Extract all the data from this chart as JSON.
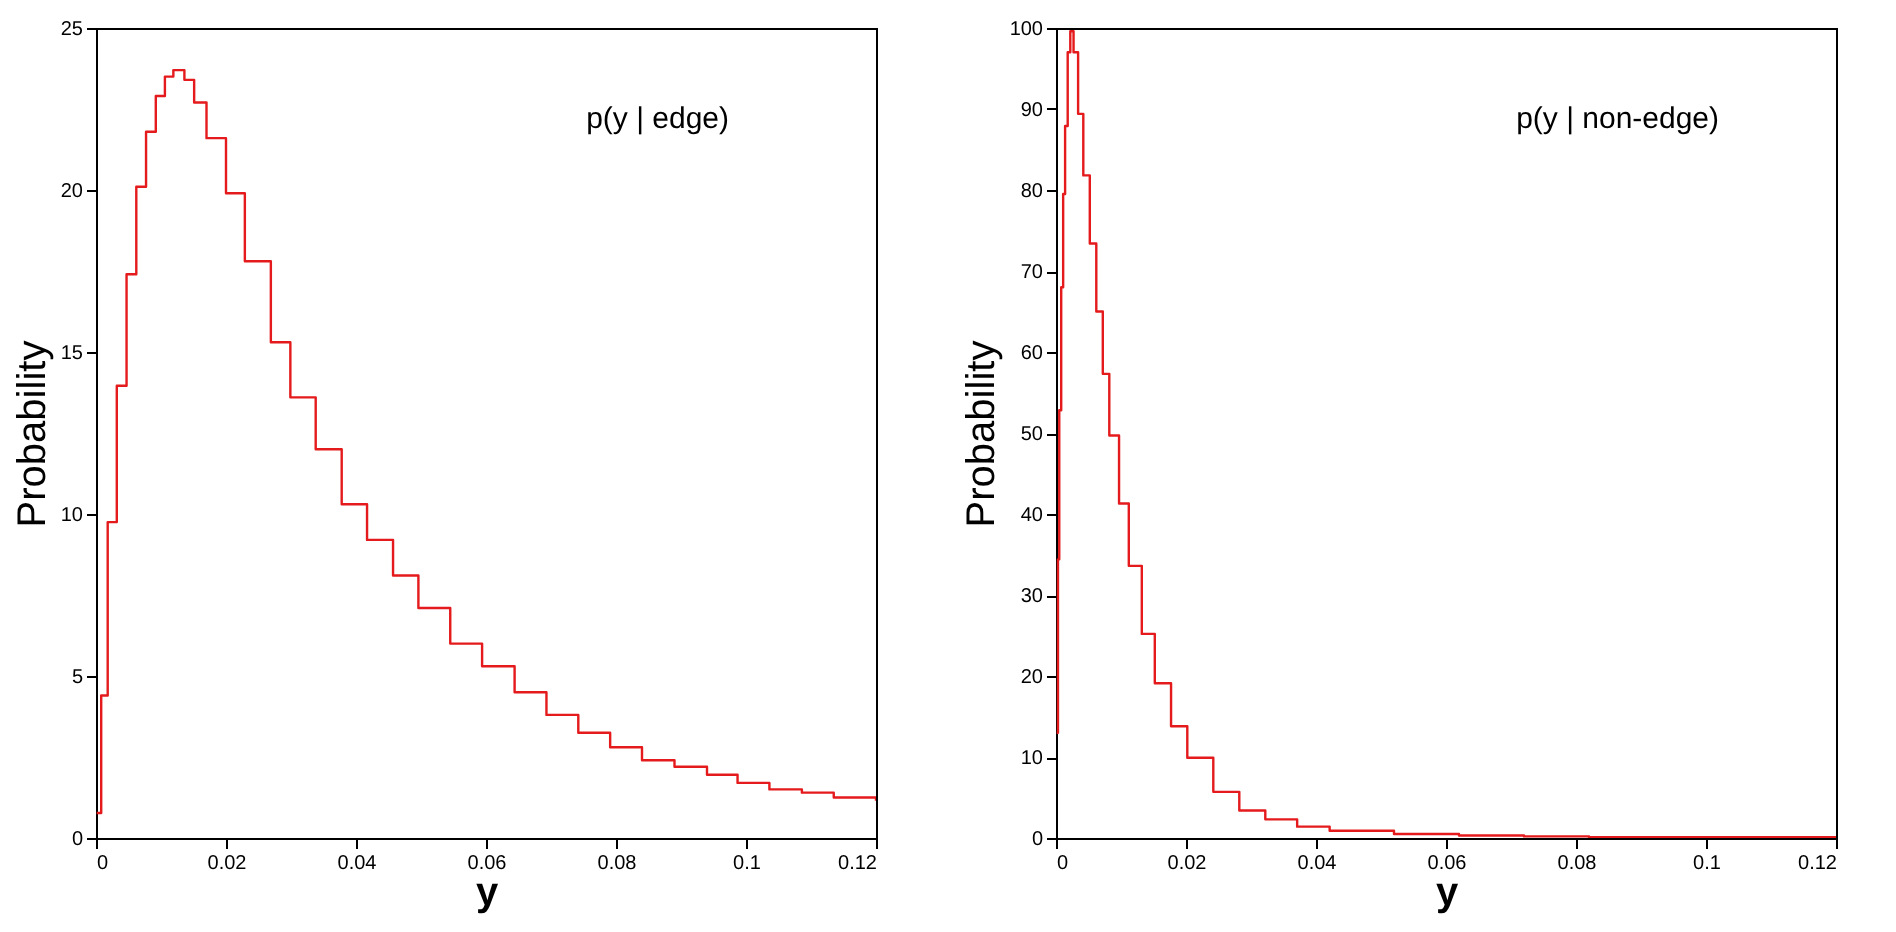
{
  "chart_data": [
    {
      "type": "step",
      "xlabel": "y",
      "ylabel": "Probability",
      "annotations": [
        "p(y | edge)"
      ],
      "xlim": [
        0,
        0.12
      ],
      "xticks": [
        0,
        0.02,
        0.04,
        0.06,
        0.08,
        0.1,
        0.12
      ],
      "ylim": [
        0,
        25
      ],
      "yticks": [
        0,
        5,
        10,
        15,
        20,
        25
      ],
      "grid": false,
      "series": [
        {
          "color": "#e41a1c",
          "x": [
            0.0001,
            0.0008,
            0.0018,
            0.0032,
            0.0047,
            0.0062,
            0.0077,
            0.0092,
            0.0106,
            0.0119,
            0.0136,
            0.0151,
            0.017,
            0.02,
            0.0229,
            0.0269,
            0.0299,
            0.0338,
            0.0378,
            0.0417,
            0.0457,
            0.0496,
            0.0545,
            0.0594,
            0.0644,
            0.0693,
            0.0742,
            0.0791,
            0.084,
            0.089,
            0.094,
            0.0987,
            0.1036,
            0.1086,
            0.1135,
            0.12
          ],
          "values": [
            0.77,
            4.4,
            9.75,
            13.96,
            17.4,
            20.1,
            21.8,
            22.9,
            23.5,
            23.7,
            23.4,
            22.7,
            21.6,
            19.9,
            17.8,
            15.3,
            13.6,
            12.0,
            10.3,
            9.2,
            8.1,
            7.1,
            6.0,
            5.3,
            4.5,
            3.8,
            3.25,
            2.8,
            2.4,
            2.2,
            1.95,
            1.7,
            1.5,
            1.4,
            1.25,
            1.15
          ]
        }
      ]
    },
    {
      "type": "step",
      "xlabel": "y",
      "ylabel": "Probability",
      "annotations": [
        "p(y | non-edge)"
      ],
      "xlim": [
        0,
        0.12
      ],
      "xticks": [
        0,
        0.02,
        0.04,
        0.06,
        0.08,
        0.1,
        0.12
      ],
      "ylim": [
        0,
        100
      ],
      "yticks": [
        0,
        10,
        20,
        30,
        40,
        50,
        60,
        70,
        80,
        90,
        100
      ],
      "grid": false,
      "series": [
        {
          "color": "#e41a1c",
          "x": [
            0.0001,
            0.0003,
            0.0005,
            0.0008,
            0.0011,
            0.0014,
            0.0018,
            0.0022,
            0.0027,
            0.0034,
            0.0042,
            0.0052,
            0.0062,
            0.0072,
            0.0082,
            0.0097,
            0.0112,
            0.0132,
            0.0152,
            0.0177,
            0.0202,
            0.0242,
            0.0282,
            0.0322,
            0.0371,
            0.0421,
            0.052,
            0.062,
            0.072,
            0.082,
            0.102,
            0.12
          ],
          "values": [
            13,
            34.4,
            52.8,
            68,
            79.5,
            87.9,
            97,
            99.6,
            97,
            89.4,
            81.8,
            73.4,
            65,
            57.3,
            49.7,
            41.3,
            33.6,
            25.2,
            19.1,
            13.8,
            9.9,
            5.7,
            3.4,
            2.3,
            1.4,
            0.9,
            0.5,
            0.3,
            0.2,
            0.1,
            0.1,
            0.0
          ]
        }
      ]
    }
  ]
}
